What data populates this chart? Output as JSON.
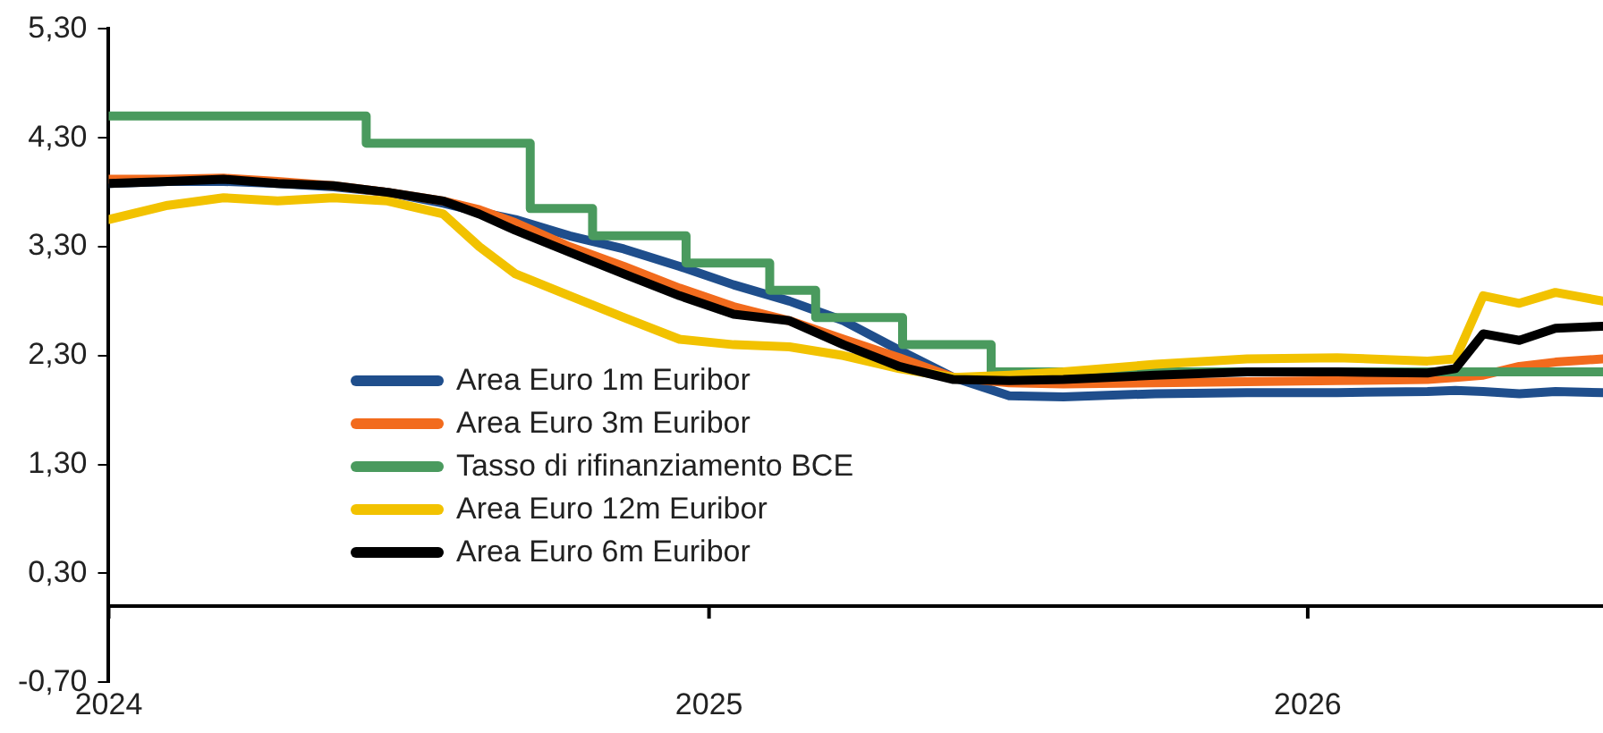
{
  "chart_data": {
    "type": "line",
    "legend": "bottom left",
    "grid": false,
    "line_style": "solid",
    "marker": "none",
    "x": [
      "2024-01-01",
      "2024-02-06",
      "2024-03-11",
      "2024-04-13",
      "2024-05-17",
      "2024-06-19",
      "2024-07-23",
      "2024-08-14",
      "2024-09-05",
      "2024-10-08",
      "2024-11-10",
      "2024-12-14",
      "2025-01-16",
      "2025-02-19",
      "2025-03-24",
      "2025-04-27",
      "2025-05-30",
      "2025-07-03",
      "2025-08-05",
      "2025-09-30",
      "2025-11-25",
      "2026-01-19",
      "2026-03-15",
      "2026-04-01",
      "2026-04-18",
      "2026-05-10",
      "2026-06-01",
      "2026-06-30"
    ],
    "xlim": [
      "2024-01-01",
      "2026-06-30"
    ],
    "xticks": [
      {
        "value": "2024-01-01",
        "label": "2024"
      },
      {
        "value": "2025-01-01",
        "label": "2025"
      },
      {
        "value": "2026-01-01",
        "label": "2026"
      }
    ],
    "ylim": [
      -0.7,
      5.3
    ],
    "yticks": [
      {
        "value": -0.7,
        "label": "-0,70"
      },
      {
        "value": 0.3,
        "label": "0,30"
      },
      {
        "value": 1.3,
        "label": "1,30"
      },
      {
        "value": 2.3,
        "label": "2,30"
      },
      {
        "value": 3.3,
        "label": "3,30"
      },
      {
        "value": 4.3,
        "label": "4,30"
      },
      {
        "value": 5.3,
        "label": "5,30"
      }
    ],
    "ref_lines": [
      {
        "axis": "y",
        "value": 0,
        "color": "#000000"
      }
    ],
    "series": [
      {
        "name": "Area Euro 1m Euribor",
        "color": "#1f4e8c",
        "values": [
          3.88,
          3.9,
          3.9,
          3.88,
          3.85,
          3.8,
          3.7,
          3.62,
          3.55,
          3.4,
          3.28,
          3.12,
          2.95,
          2.8,
          2.62,
          2.35,
          2.1,
          1.93,
          1.92,
          1.95,
          1.96,
          1.96,
          1.97,
          1.98,
          1.97,
          1.95,
          1.97,
          1.96
        ]
      },
      {
        "name": "Area Euro 3m Euribor",
        "color": "#f26b1d",
        "values": [
          3.92,
          3.92,
          3.93,
          3.9,
          3.86,
          3.8,
          3.72,
          3.64,
          3.52,
          3.3,
          3.12,
          2.92,
          2.75,
          2.62,
          2.45,
          2.28,
          2.1,
          2.05,
          2.04,
          2.05,
          2.06,
          2.07,
          2.08,
          2.1,
          2.12,
          2.2,
          2.24,
          2.27
        ]
      },
      {
        "name": "Tasso di rifinanziamento BCE",
        "type": "step",
        "color": "#4a9a5e",
        "x": [
          "2024-01-01",
          "2024-06-06",
          "2024-09-14",
          "2024-10-22",
          "2024-12-18",
          "2025-02-07",
          "2025-03-07",
          "2025-04-29",
          "2025-06-22",
          "2026-06-30"
        ],
        "values": [
          4.5,
          4.25,
          3.65,
          3.4,
          3.15,
          2.9,
          2.65,
          2.4,
          2.15,
          2.15
        ]
      },
      {
        "name": "Area Euro 12m Euribor",
        "color": "#f2c200",
        "values": [
          3.55,
          3.68,
          3.75,
          3.72,
          3.75,
          3.72,
          3.6,
          3.3,
          3.05,
          2.85,
          2.65,
          2.45,
          2.4,
          2.38,
          2.3,
          2.18,
          2.1,
          2.12,
          2.15,
          2.22,
          2.27,
          2.28,
          2.25,
          2.27,
          2.85,
          2.78,
          2.88,
          2.8
        ]
      },
      {
        "name": "Area Euro 6m Euribor",
        "color": "#000000",
        "values": [
          3.88,
          3.9,
          3.92,
          3.88,
          3.86,
          3.8,
          3.72,
          3.6,
          3.45,
          3.25,
          3.05,
          2.85,
          2.68,
          2.62,
          2.4,
          2.2,
          2.08,
          2.07,
          2.08,
          2.12,
          2.15,
          2.15,
          2.14,
          2.18,
          2.5,
          2.44,
          2.55,
          2.57
        ]
      }
    ]
  }
}
